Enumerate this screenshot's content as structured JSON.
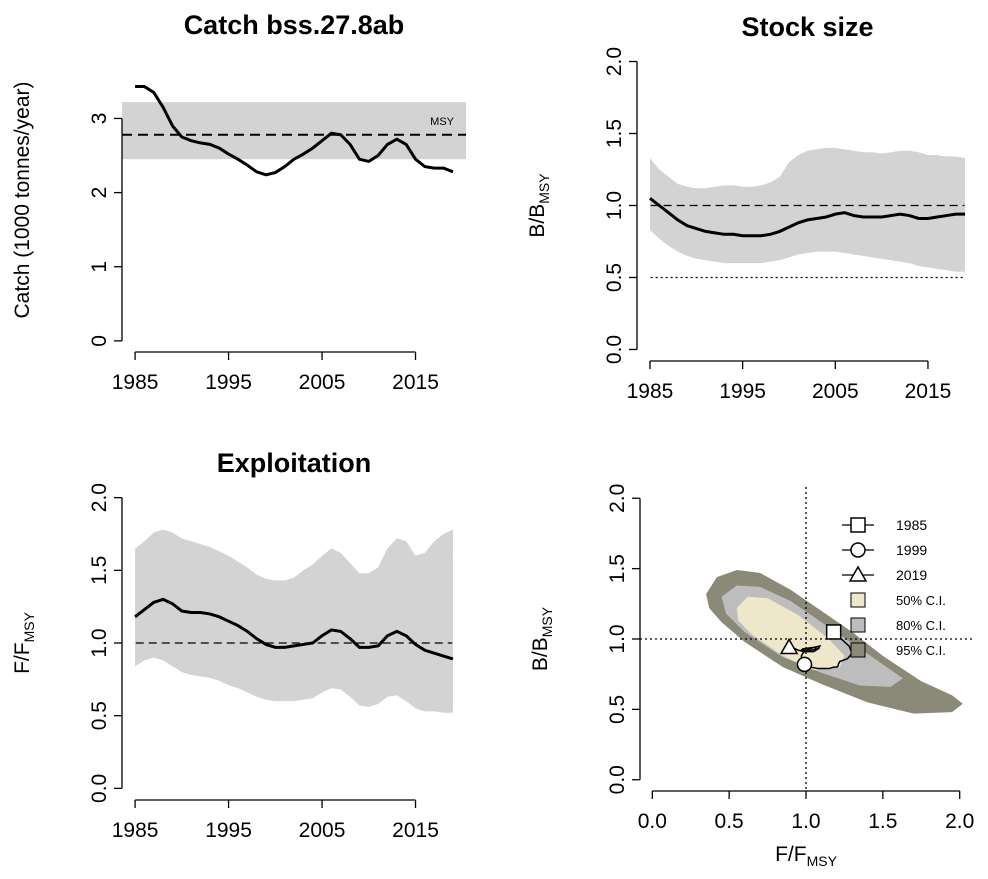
{
  "chart_data": [
    {
      "type": "line",
      "title": "Catch bss.27.8ab",
      "y_label": "Catch (1000 tonnes/year)",
      "x": [
        1985,
        1986,
        1987,
        1988,
        1989,
        1990,
        1991,
        1992,
        1993,
        1994,
        1995,
        1996,
        1997,
        1998,
        1999,
        2000,
        2001,
        2002,
        2003,
        2004,
        2005,
        2006,
        2007,
        2008,
        2009,
        2010,
        2011,
        2012,
        2013,
        2014,
        2015,
        2016,
        2017,
        2018,
        2019
      ],
      "values": [
        3.43,
        3.43,
        3.35,
        3.15,
        2.9,
        2.75,
        2.7,
        2.67,
        2.65,
        2.6,
        2.52,
        2.45,
        2.37,
        2.28,
        2.24,
        2.27,
        2.35,
        2.45,
        2.52,
        2.6,
        2.7,
        2.8,
        2.78,
        2.65,
        2.45,
        2.42,
        2.5,
        2.65,
        2.72,
        2.65,
        2.45,
        2.35,
        2.33,
        2.33,
        2.28
      ],
      "color": "#000000",
      "xlim": [
        1983.6,
        2020.4
      ],
      "xticks": [
        1985,
        1995,
        2005,
        2015
      ],
      "ylim": [
        -0.15,
        3.95
      ],
      "yticks": [
        0,
        1,
        2,
        3
      ],
      "msy": 2.78,
      "msy_range": [
        2.45,
        3.22
      ],
      "msy_label": "MSY",
      "band_color": "#d3d3d3"
    },
    {
      "type": "line",
      "title": "Stock size",
      "y_label": "B/B",
      "y_label_sub": "MSY",
      "x": [
        1985,
        1986,
        1987,
        1988,
        1989,
        1990,
        1991,
        1992,
        1993,
        1994,
        1995,
        1996,
        1997,
        1998,
        1999,
        2000,
        2001,
        2002,
        2003,
        2004,
        2005,
        2006,
        2007,
        2008,
        2009,
        2010,
        2011,
        2012,
        2013,
        2014,
        2015,
        2016,
        2017,
        2018,
        2019
      ],
      "values": [
        1.05,
        1.0,
        0.95,
        0.9,
        0.86,
        0.84,
        0.82,
        0.81,
        0.8,
        0.8,
        0.79,
        0.79,
        0.79,
        0.8,
        0.82,
        0.85,
        0.88,
        0.9,
        0.91,
        0.92,
        0.94,
        0.95,
        0.93,
        0.92,
        0.92,
        0.92,
        0.93,
        0.94,
        0.93,
        0.91,
        0.91,
        0.92,
        0.93,
        0.94,
        0.94
      ],
      "lower": [
        0.83,
        0.77,
        0.72,
        0.68,
        0.65,
        0.63,
        0.62,
        0.61,
        0.6,
        0.6,
        0.6,
        0.6,
        0.6,
        0.61,
        0.62,
        0.64,
        0.66,
        0.67,
        0.68,
        0.68,
        0.68,
        0.67,
        0.66,
        0.65,
        0.64,
        0.63,
        0.62,
        0.61,
        0.6,
        0.58,
        0.57,
        0.56,
        0.55,
        0.54,
        0.54
      ],
      "upper": [
        1.33,
        1.25,
        1.2,
        1.15,
        1.13,
        1.12,
        1.12,
        1.13,
        1.14,
        1.14,
        1.13,
        1.13,
        1.14,
        1.16,
        1.2,
        1.3,
        1.35,
        1.38,
        1.39,
        1.4,
        1.4,
        1.39,
        1.38,
        1.37,
        1.37,
        1.36,
        1.37,
        1.38,
        1.38,
        1.37,
        1.35,
        1.35,
        1.34,
        1.34,
        1.33
      ],
      "color": "#000000",
      "band_color": "#d3d3d3",
      "ref_lines": [
        {
          "value": 1,
          "style": "dashed"
        },
        {
          "value": 0.5,
          "style": "dotted"
        }
      ],
      "xlim": [
        1983.6,
        2020.4
      ],
      "xticks": [
        1985,
        1995,
        2005,
        2015
      ],
      "ylim": [
        -0.08,
        2.08
      ],
      "yticks": [
        {
          "value": 0,
          "label": "0.0"
        },
        0.5,
        {
          "value": 1,
          "label": "1.0"
        },
        1.5,
        {
          "value": 2,
          "label": "2.0"
        }
      ]
    },
    {
      "type": "line",
      "title": "Exploitation",
      "y_label": "F/F",
      "y_label_sub": "MSY",
      "x": [
        1985,
        1986,
        1987,
        1988,
        1989,
        1990,
        1991,
        1992,
        1993,
        1994,
        1995,
        1996,
        1997,
        1998,
        1999,
        2000,
        2001,
        2002,
        2003,
        2004,
        2005,
        2006,
        2007,
        2008,
        2009,
        2010,
        2011,
        2012,
        2013,
        2014,
        2015,
        2016,
        2017,
        2018,
        2019
      ],
      "values": [
        1.18,
        1.23,
        1.28,
        1.3,
        1.27,
        1.22,
        1.21,
        1.21,
        1.2,
        1.18,
        1.15,
        1.12,
        1.08,
        1.03,
        0.99,
        0.97,
        0.97,
        0.98,
        0.99,
        1.0,
        1.05,
        1.09,
        1.08,
        1.03,
        0.97,
        0.97,
        0.98,
        1.05,
        1.08,
        1.05,
        0.99,
        0.95,
        0.93,
        0.91,
        0.89
      ],
      "lower": [
        0.84,
        0.88,
        0.9,
        0.88,
        0.84,
        0.8,
        0.78,
        0.77,
        0.76,
        0.74,
        0.71,
        0.69,
        0.66,
        0.63,
        0.61,
        0.6,
        0.6,
        0.6,
        0.61,
        0.62,
        0.66,
        0.69,
        0.68,
        0.63,
        0.57,
        0.56,
        0.58,
        0.63,
        0.64,
        0.6,
        0.55,
        0.53,
        0.53,
        0.52,
        0.52
      ],
      "upper": [
        1.65,
        1.7,
        1.76,
        1.78,
        1.76,
        1.72,
        1.7,
        1.68,
        1.66,
        1.63,
        1.6,
        1.56,
        1.52,
        1.47,
        1.44,
        1.43,
        1.43,
        1.45,
        1.5,
        1.54,
        1.6,
        1.65,
        1.62,
        1.55,
        1.48,
        1.48,
        1.52,
        1.65,
        1.72,
        1.7,
        1.6,
        1.62,
        1.7,
        1.75,
        1.78
      ],
      "color": "#000000",
      "band_color": "#d3d3d3",
      "ref_lines": [
        {
          "value": 1,
          "style": "dashed"
        }
      ],
      "xlim": [
        1983.6,
        2020.4
      ],
      "xticks": [
        1985,
        1995,
        2005,
        2015
      ],
      "ylim": [
        -0.08,
        2.08
      ],
      "yticks": [
        {
          "value": 0,
          "label": "0.0"
        },
        0.5,
        {
          "value": 1,
          "label": "1.0"
        },
        1.5,
        {
          "value": 2,
          "label": "2.0"
        }
      ]
    },
    {
      "type": "kobe",
      "x_label": "F/F",
      "x_label_sub": "MSY",
      "y_label": "B/B",
      "y_label_sub": "MSY",
      "xlim": [
        -0.08,
        2.08
      ],
      "xticks": [
        {
          "value": 0,
          "label": "0.0"
        },
        0.5,
        {
          "value": 1,
          "label": "1.0"
        },
        1.5,
        {
          "value": 2,
          "label": "2.0"
        }
      ],
      "ylim": [
        -0.08,
        2.08
      ],
      "yticks": [
        {
          "value": 0,
          "label": "0.0"
        },
        0.5,
        {
          "value": 1,
          "label": "1.0"
        },
        1.5,
        {
          "value": 2,
          "label": "2.0"
        }
      ],
      "ref_x": 1,
      "ref_y": 1,
      "regions": [
        {
          "name": "50% C.I.",
          "color": "#efe7c9",
          "points": [
            [
              0.55,
              1.22
            ],
            [
              0.62,
              1.3
            ],
            [
              0.75,
              1.29
            ],
            [
              0.95,
              1.17
            ],
            [
              1.15,
              1.0
            ],
            [
              1.25,
              0.88
            ],
            [
              1.22,
              0.8
            ],
            [
              1.05,
              0.78
            ],
            [
              0.85,
              0.88
            ],
            [
              0.65,
              1.03
            ],
            [
              0.56,
              1.13
            ]
          ]
        },
        {
          "name": "80% C.I.",
          "color": "#bdbdbd",
          "points": [
            [
              0.45,
              1.3
            ],
            [
              0.55,
              1.38
            ],
            [
              0.7,
              1.37
            ],
            [
              0.9,
              1.27
            ],
            [
              1.1,
              1.12
            ],
            [
              1.3,
              0.97
            ],
            [
              1.5,
              0.82
            ],
            [
              1.63,
              0.72
            ],
            [
              1.55,
              0.66
            ],
            [
              1.35,
              0.67
            ],
            [
              1.1,
              0.76
            ],
            [
              0.85,
              0.87
            ],
            [
              0.6,
              1.05
            ],
            [
              0.48,
              1.18
            ]
          ]
        },
        {
          "name": "95% C.I.",
          "color": "#8b8a79",
          "points": [
            [
              0.35,
              1.32
            ],
            [
              0.42,
              1.44
            ],
            [
              0.55,
              1.49
            ],
            [
              0.7,
              1.47
            ],
            [
              0.9,
              1.35
            ],
            [
              1.1,
              1.2
            ],
            [
              1.3,
              1.05
            ],
            [
              1.5,
              0.88
            ],
            [
              1.75,
              0.7
            ],
            [
              1.95,
              0.6
            ],
            [
              2.02,
              0.54
            ],
            [
              1.95,
              0.48
            ],
            [
              1.7,
              0.47
            ],
            [
              1.4,
              0.55
            ],
            [
              1.1,
              0.68
            ],
            [
              0.85,
              0.8
            ],
            [
              0.6,
              0.98
            ],
            [
              0.45,
              1.12
            ],
            [
              0.37,
              1.22
            ]
          ]
        }
      ],
      "year_markers": [
        {
          "name": "1985",
          "shape": "square"
        },
        {
          "name": "1999",
          "shape": "circle"
        },
        {
          "name": "2019",
          "shape": "triangle"
        }
      ]
    }
  ]
}
